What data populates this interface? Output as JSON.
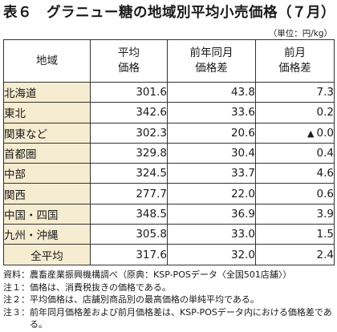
{
  "title": "表６　グラニュー糖の地域別平均小売価格（７月）",
  "unit": "（単位：円/kg）",
  "table": {
    "headers": [
      "地域",
      "平均\n価格",
      "前年同月\n価格差",
      "前月\n価格差"
    ],
    "rows": [
      {
        "region": "北海道",
        "avg": "301.6",
        "yoy": "43.8",
        "mom_mark": "",
        "mom": "7.3"
      },
      {
        "region": "東北",
        "avg": "342.6",
        "yoy": "33.6",
        "mom_mark": "",
        "mom": "0.2"
      },
      {
        "region": "関東など",
        "avg": "302.3",
        "yoy": "20.6",
        "mom_mark": "▲",
        "mom": "0.0"
      },
      {
        "region": "首都圏",
        "avg": "329.8",
        "yoy": "30.4",
        "mom_mark": "",
        "mom": "0.4"
      },
      {
        "region": "中部",
        "avg": "324.5",
        "yoy": "33.7",
        "mom_mark": "",
        "mom": "4.6"
      },
      {
        "region": "関西",
        "avg": "277.7",
        "yoy": "22.0",
        "mom_mark": "",
        "mom": "0.6"
      },
      {
        "region": "中国・四国",
        "avg": "348.5",
        "yoy": "36.9",
        "mom_mark": "",
        "mom": "3.9"
      },
      {
        "region": "九州・沖縄",
        "avg": "305.8",
        "yoy": "33.0",
        "mom_mark": "",
        "mom": "1.5"
      }
    ],
    "total": {
      "region": "全平均",
      "avg": "317.6",
      "yoy": "32.0",
      "mom_mark": "",
      "mom": "2.4"
    }
  },
  "notes": [
    {
      "label": "資料：",
      "text": "農畜産業振興機構調べ（原典：KSP-POSデータ〈全国501店舗〉）"
    },
    {
      "label": "注１：",
      "text": "価格は、消費税抜きの価格である。"
    },
    {
      "label": "注２：",
      "text": "平均価格は、店舗別商品別の最高価格の単純平均である。"
    },
    {
      "label": "注３：",
      "text": "前年同月価格差および前月価格差は、KSP-POSデータ内における価格差である。"
    }
  ],
  "colors": {
    "region_cell_bg": "#f5ecd1",
    "border": "#333333"
  }
}
